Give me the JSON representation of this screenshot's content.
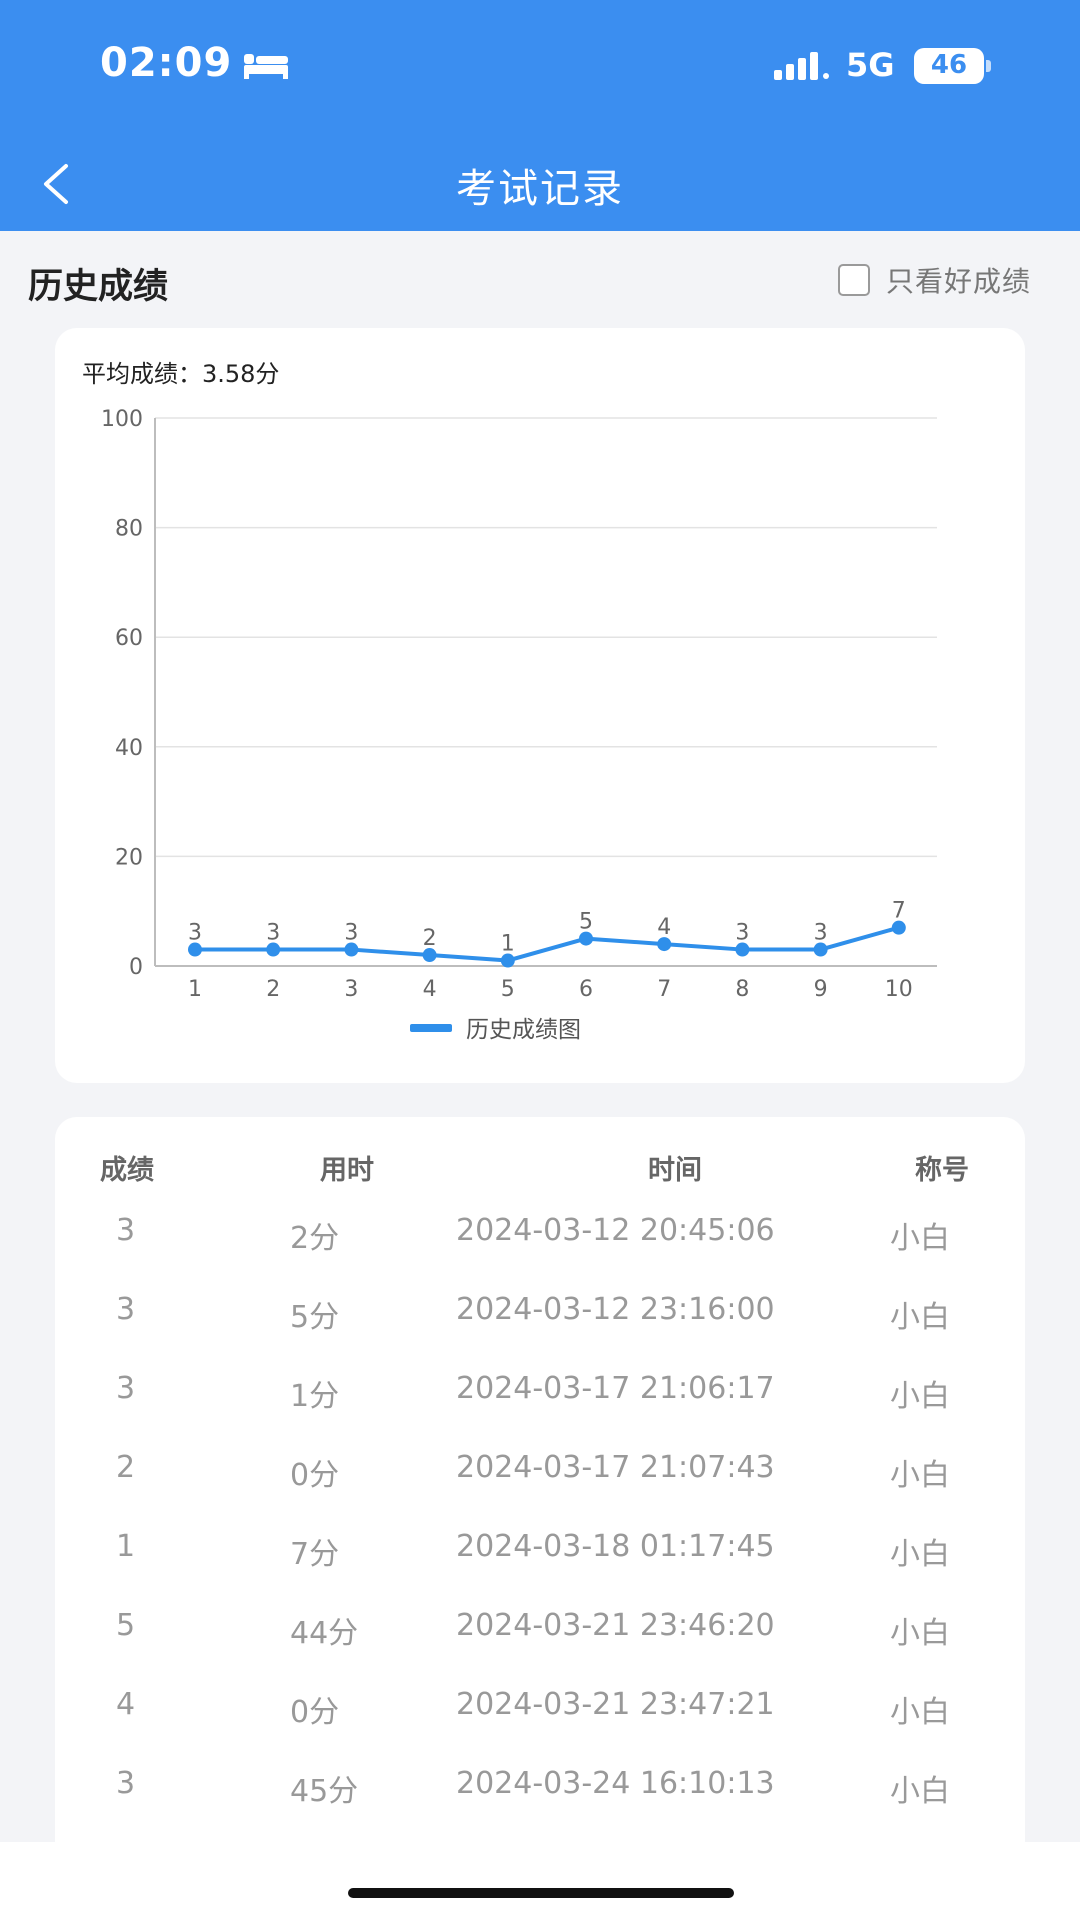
{
  "status_bar": {
    "time": "02:09",
    "network": "5G",
    "battery": "46",
    "icons": [
      "bed-icon",
      "signal-icon",
      "battery-icon"
    ]
  },
  "header": {
    "title": "考试记录",
    "back_icon": "chevron-left-icon"
  },
  "section": {
    "title": "历史成绩",
    "filter_label": "只看好成绩",
    "filter_checked": false
  },
  "average": {
    "label": "平均成绩：3.58分"
  },
  "chart_data": {
    "type": "line",
    "categories": [
      "1",
      "2",
      "3",
      "4",
      "5",
      "6",
      "7",
      "8",
      "9",
      "10"
    ],
    "series": [
      {
        "name": "历史成绩图",
        "values": [
          3,
          3,
          3,
          2,
          1,
          5,
          4,
          3,
          3,
          7
        ]
      }
    ],
    "ylim": [
      0,
      100
    ],
    "yticks": [
      0,
      20,
      40,
      60,
      80,
      100
    ],
    "grid": true,
    "legend": "bottom",
    "colors": {
      "line": "#2f8fea",
      "grid": "#e3e3e3",
      "axis": "#bdbdbd",
      "text": "#666666"
    }
  },
  "table": {
    "headers": [
      "成绩",
      "用时",
      "时间",
      "称号"
    ],
    "rows": [
      [
        "3",
        "2分",
        "2024-03-12 20:45:06",
        "小白"
      ],
      [
        "3",
        "5分",
        "2024-03-12 23:16:00",
        "小白"
      ],
      [
        "3",
        "1分",
        "2024-03-17 21:06:17",
        "小白"
      ],
      [
        "2",
        "0分",
        "2024-03-17 21:07:43",
        "小白"
      ],
      [
        "1",
        "7分",
        "2024-03-18 01:17:45",
        "小白"
      ],
      [
        "5",
        "44分",
        "2024-03-21 23:46:20",
        "小白"
      ],
      [
        "4",
        "0分",
        "2024-03-21 23:47:21",
        "小白"
      ],
      [
        "3",
        "45分",
        "2024-03-24 16:10:13",
        "小白"
      ]
    ]
  },
  "colors": {
    "primary": "#3b8ef0",
    "background": "#f3f4f7"
  }
}
